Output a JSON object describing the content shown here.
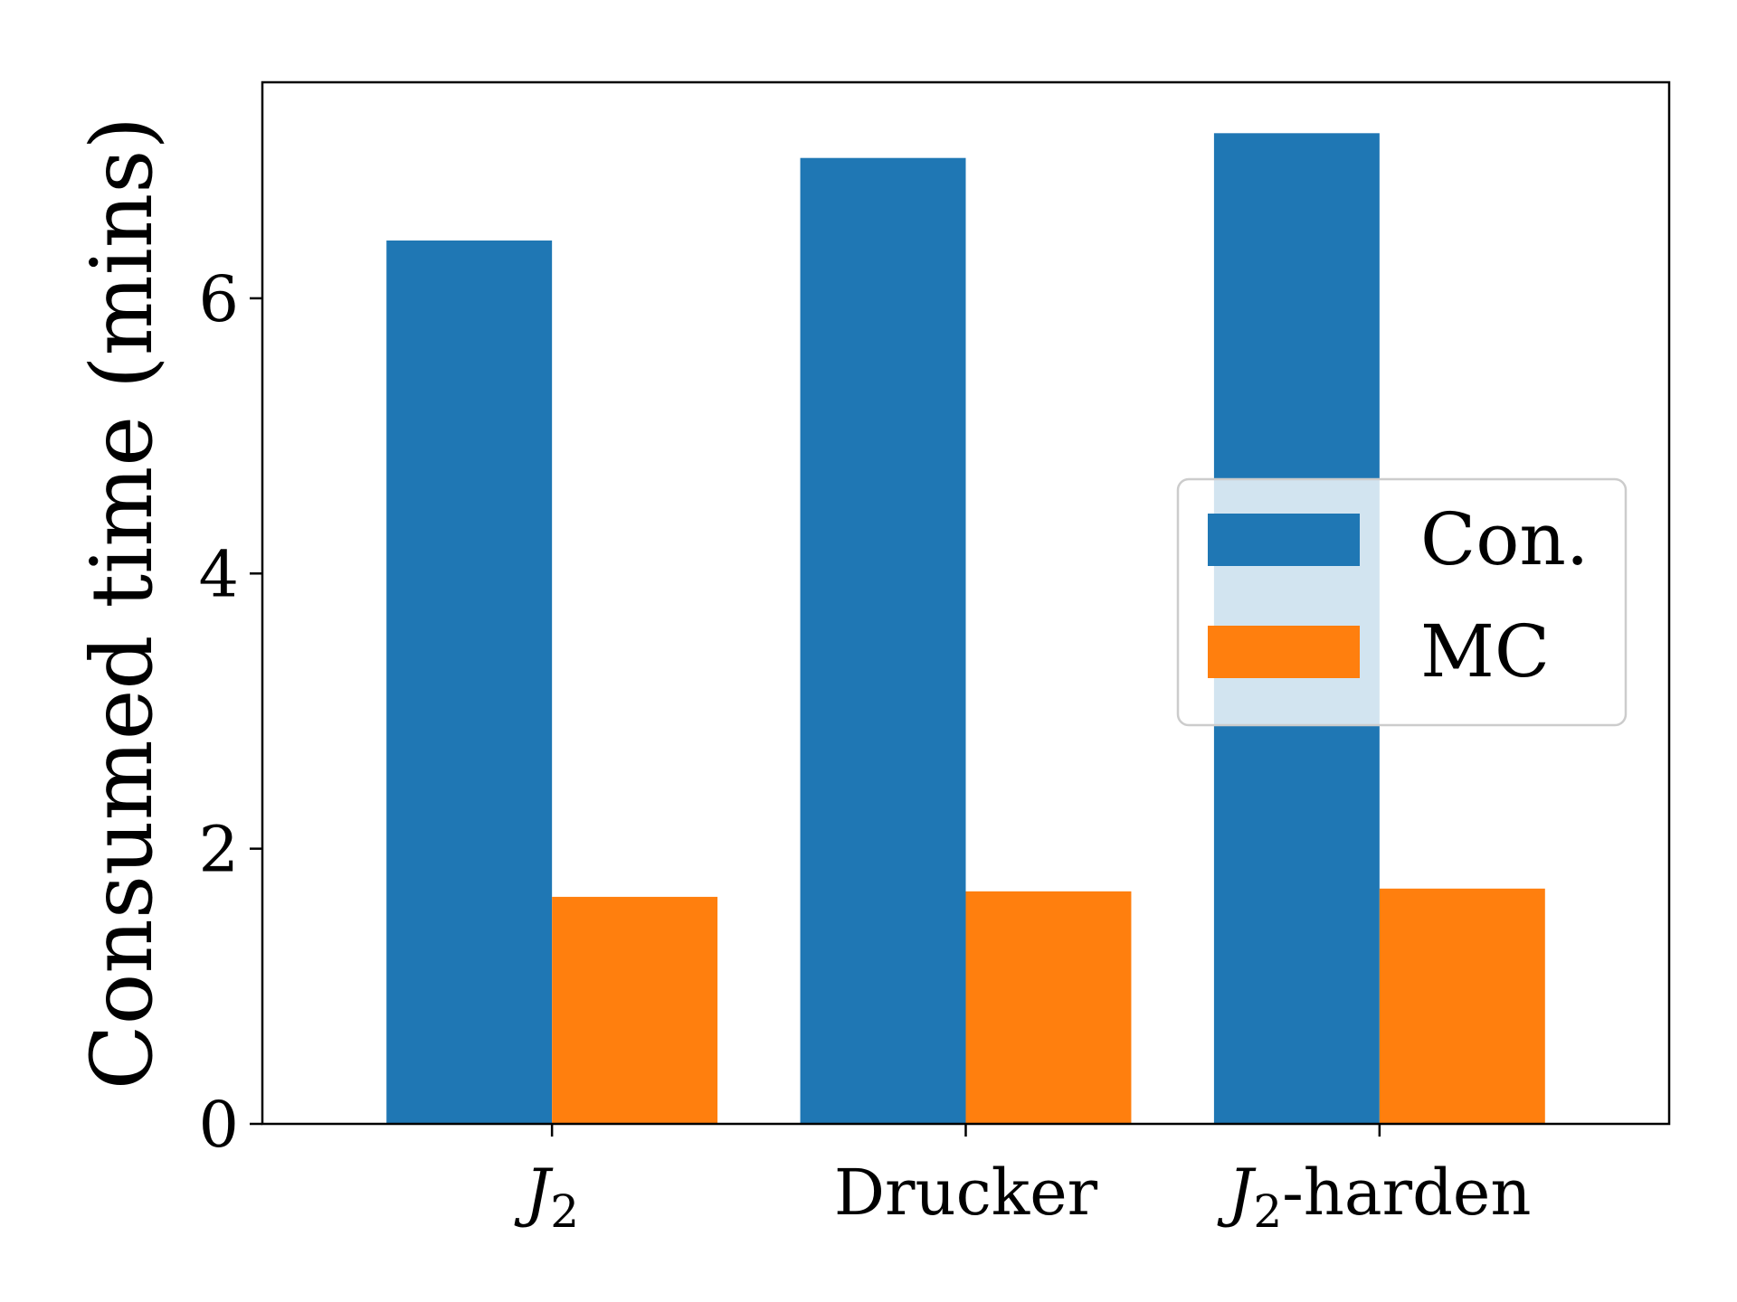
{
  "chart_data": {
    "type": "bar",
    "categories": [
      "J2",
      "Drucker",
      "J2-harden"
    ],
    "category_labels": [
      {
        "main": "J",
        "sub": "2",
        "rest": ""
      },
      {
        "main": "Drucker",
        "sub": "",
        "rest": ""
      },
      {
        "main": "J",
        "sub": "2",
        "rest": "-harden"
      }
    ],
    "series": [
      {
        "name": "Con.",
        "color": "#1f77b4",
        "values": [
          6.42,
          7.02,
          7.2
        ]
      },
      {
        "name": "MC",
        "color": "#ff7f0e",
        "values": [
          1.65,
          1.69,
          1.71
        ]
      }
    ],
    "xlabel": "",
    "ylabel": "Consumed time (mins)",
    "ylim": [
      0,
      7.57
    ],
    "yticks": [
      0,
      2,
      4,
      6
    ],
    "grid": false,
    "legend_position": "center-right"
  }
}
